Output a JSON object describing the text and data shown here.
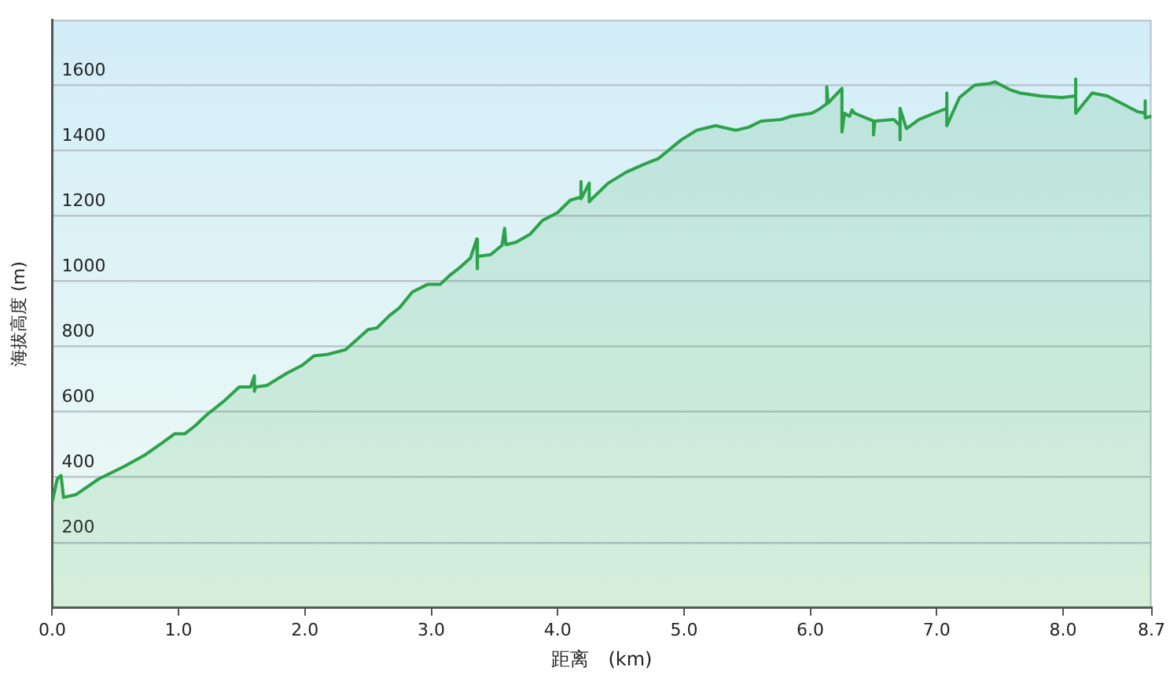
{
  "chart_data": {
    "type": "area",
    "xlabel": "距离　(km)",
    "ylabel": "海拔高度 (m)",
    "x": [
      0.0,
      0.04,
      0.07,
      0.09,
      0.19,
      0.37,
      0.57,
      0.73,
      0.87,
      0.97,
      1.05,
      1.13,
      1.22,
      1.36,
      1.48,
      1.57,
      1.6,
      1.6,
      1.61,
      1.7,
      1.78,
      1.86,
      1.98,
      2.07,
      2.18,
      2.32,
      2.42,
      2.5,
      2.57,
      2.67,
      2.75,
      2.85,
      2.97,
      3.07,
      3.15,
      3.23,
      3.31,
      3.36,
      3.36,
      3.37,
      3.47,
      3.56,
      3.58,
      3.59,
      3.67,
      3.78,
      3.88,
      4.0,
      4.1,
      4.18,
      4.18,
      4.19,
      4.25,
      4.25,
      4.26,
      4.4,
      4.54,
      4.68,
      4.8,
      4.98,
      5.1,
      5.25,
      5.41,
      5.51,
      5.61,
      5.77,
      5.85,
      6.01,
      6.06,
      6.13,
      6.13,
      6.14,
      6.25,
      6.25,
      6.27,
      6.31,
      6.33,
      6.35,
      6.5,
      6.5,
      6.51,
      6.66,
      6.71,
      6.71,
      6.71,
      6.76,
      6.86,
      6.98,
      7.08,
      7.08,
      7.08,
      7.18,
      7.3,
      7.42,
      7.46,
      7.58,
      7.66,
      7.82,
      7.99,
      8.1,
      8.1,
      8.1,
      8.23,
      8.35,
      8.47,
      8.59,
      8.65,
      8.65,
      8.65,
      8.7
    ],
    "series": [
      {
        "color": "#2ca24a",
        "values": [
          324,
          395,
          405,
          338,
          347,
          395,
          433,
          467,
          505,
          533,
          533,
          557,
          590,
          633,
          676,
          676,
          710,
          663,
          676,
          681,
          700,
          719,
          743,
          771,
          776,
          790,
          824,
          852,
          857,
          895,
          919,
          967,
          990,
          990,
          1019,
          1043,
          1071,
          1129,
          1038,
          1076,
          1081,
          1110,
          1162,
          1112,
          1119,
          1143,
          1186,
          1210,
          1248,
          1257,
          1305,
          1252,
          1300,
          1243,
          1248,
          1300,
          1333,
          1357,
          1376,
          1433,
          1462,
          1476,
          1462,
          1471,
          1490,
          1495,
          1505,
          1514,
          1524,
          1543,
          1595,
          1545,
          1590,
          1457,
          1514,
          1505,
          1524,
          1514,
          1490,
          1448,
          1490,
          1495,
          1476,
          1433,
          1529,
          1467,
          1495,
          1514,
          1529,
          1576,
          1476,
          1562,
          1600,
          1605,
          1610,
          1586,
          1576,
          1567,
          1562,
          1567,
          1619,
          1514,
          1576,
          1567,
          1543,
          1519,
          1514,
          1552,
          1500,
          1505
        ]
      }
    ],
    "xlim": [
      0,
      8.7
    ],
    "ylim": [
      0,
      1800
    ],
    "xticks": [
      {
        "value": 0,
        "label": "0.0"
      },
      {
        "value": 1,
        "label": "1.0"
      },
      {
        "value": 2,
        "label": "2.0"
      },
      {
        "value": 3,
        "label": "3.0"
      },
      {
        "value": 4,
        "label": "4.0"
      },
      {
        "value": 5,
        "label": "5.0"
      },
      {
        "value": 6,
        "label": "6.0"
      },
      {
        "value": 7,
        "label": "7.0"
      },
      {
        "value": 8,
        "label": "8.0"
      },
      {
        "value": 8.7,
        "label": "8.7"
      }
    ],
    "yticks": [
      200,
      400,
      600,
      800,
      1000,
      1200,
      1400,
      1600
    ],
    "grid": "y"
  }
}
